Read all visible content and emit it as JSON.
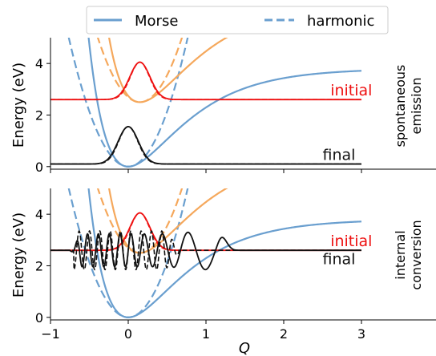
{
  "colors": {
    "morse_lower": "#6a9fcf",
    "morse_upper": "#f5a85c",
    "initial": "#ee1111",
    "final": "#111111",
    "axis": "#000000",
    "legend_border": "#cccccc"
  },
  "legend": {
    "position": "top-center",
    "entries": [
      {
        "label": "Morse",
        "style": "solid"
      },
      {
        "label": "harmonic",
        "style": "dashed"
      }
    ]
  },
  "xaxis": {
    "label": "Q",
    "ticks": [
      {
        "value": -1,
        "label": "−1"
      },
      {
        "value": 0,
        "label": "0"
      },
      {
        "value": 1,
        "label": "1"
      },
      {
        "value": 2,
        "label": "2"
      },
      {
        "value": 3,
        "label": "3"
      }
    ]
  },
  "chart_data": [
    {
      "type": "line",
      "panel": "top",
      "xlim": [
        -1,
        4
      ],
      "ylim": [
        -0.1,
        5
      ],
      "ylabel": "Energy (eV)",
      "yticks": [
        {
          "value": 0,
          "label": "0"
        },
        {
          "value": 2,
          "label": "2"
        },
        {
          "value": 4,
          "label": "4"
        }
      ],
      "side_label": [
        "spontaneous",
        "emission"
      ],
      "level_labels": [
        {
          "text": "initial",
          "energy": 2.6,
          "x": 2.6,
          "color": "initial"
        },
        {
          "text": "final",
          "energy": 0.1,
          "x": 2.5,
          "color": "final"
        }
      ],
      "potentials": [
        {
          "name": "lower",
          "kind": "morse",
          "D": 3.8,
          "a": 1.5,
          "q0": 0.0,
          "E0": 0.0,
          "color": "morse_lower"
        },
        {
          "name": "upper",
          "kind": "morse",
          "D": 3.8,
          "a": 1.5,
          "q0": 0.15,
          "E0": 2.5,
          "color": "morse_upper"
        }
      ],
      "wavefunctions": [
        {
          "name": "initial",
          "kind": "gaussian",
          "center": 0.15,
          "width": 0.13,
          "baseline": 2.6,
          "amplitude": 1.45,
          "color": "initial"
        },
        {
          "name": "final",
          "kind": "gaussian",
          "center": 0.0,
          "width": 0.13,
          "baseline": 0.1,
          "amplitude": 1.45,
          "color": "final"
        }
      ]
    },
    {
      "type": "line",
      "panel": "bottom",
      "xlim": [
        -1,
        4
      ],
      "ylim": [
        -0.1,
        5
      ],
      "ylabel": "Energy (eV)",
      "yticks": [
        {
          "value": 0,
          "label": "0"
        },
        {
          "value": 2,
          "label": "2"
        },
        {
          "value": 4,
          "label": "4"
        }
      ],
      "side_label": [
        "internal",
        "conversion"
      ],
      "level_labels": [
        {
          "text": "initial",
          "energy": 2.6,
          "x": 2.6,
          "color": "initial"
        },
        {
          "text": "final",
          "energy": 1.9,
          "x": 2.5,
          "color": "final"
        }
      ],
      "potentials": [
        {
          "name": "lower",
          "kind": "morse",
          "D": 3.8,
          "a": 1.5,
          "q0": 0.0,
          "E0": 0.0,
          "color": "morse_lower"
        },
        {
          "name": "upper",
          "kind": "morse",
          "D": 3.8,
          "a": 1.5,
          "q0": 0.15,
          "E0": 2.5,
          "color": "morse_upper"
        }
      ],
      "wavefunctions": [
        {
          "name": "initial",
          "kind": "gaussian",
          "center": 0.15,
          "width": 0.13,
          "baseline": 2.6,
          "amplitude": 1.45,
          "color": "initial"
        },
        {
          "name": "final",
          "kind": "oscillatory",
          "baseline": 2.6,
          "amplitude": 0.75,
          "q_left": -0.6,
          "q_right": 1.25,
          "envelope_peak": 1.15,
          "phase_scale": 45.0,
          "color": "final"
        }
      ]
    }
  ]
}
